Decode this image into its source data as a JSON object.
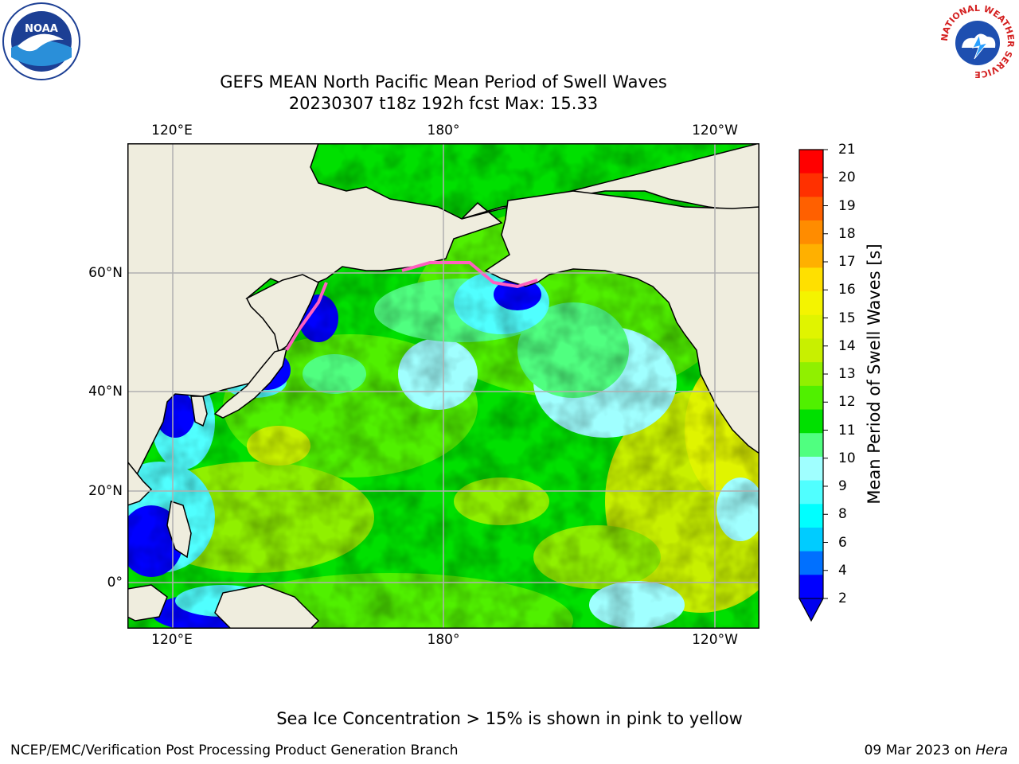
{
  "title": {
    "line1": "GEFS MEAN North Pacific Mean Period of Swell Waves",
    "line2": "20230307 t18z 192h fcst   Max: 15.33"
  },
  "axes": {
    "lon_top": [
      "120°E",
      "180°",
      "120°W"
    ],
    "lon_bottom": [
      "120°E",
      "180°",
      "120°W"
    ],
    "lat_left": [
      "60°N",
      "40°N",
      "20°N",
      "0°"
    ]
  },
  "logos": {
    "noaa_text": "NOAA",
    "nws_ring_text": "NATIONAL WEATHER SERVICE"
  },
  "colorbar": {
    "label": "Mean Period of Swell Waves [s]",
    "ticks": [
      "21",
      "20",
      "19",
      "18",
      "17",
      "16",
      "15",
      "14",
      "13",
      "12",
      "11",
      "10",
      "9",
      "8",
      "6",
      "4",
      "2"
    ],
    "colors": [
      "#ff0000",
      "#ff3000",
      "#ff6000",
      "#ff8c00",
      "#ffb000",
      "#ffe000",
      "#f4f400",
      "#e0f400",
      "#c8f000",
      "#90f000",
      "#50f000",
      "#00e000",
      "#50ff80",
      "#a0ffff",
      "#50ffff",
      "#00ffff",
      "#00ccff",
      "#0070ff",
      "#0000ff"
    ]
  },
  "legend": {
    "land": "#efedde",
    "sea_ice_note": "Sea Ice Concentration > 15% is shown in pink to yellow"
  },
  "footer": {
    "credit": "NCEP/EMC/Verification Post Processing Product Generation Branch",
    "date": "09 Mar 2023 on ",
    "machine": "Hera"
  }
}
